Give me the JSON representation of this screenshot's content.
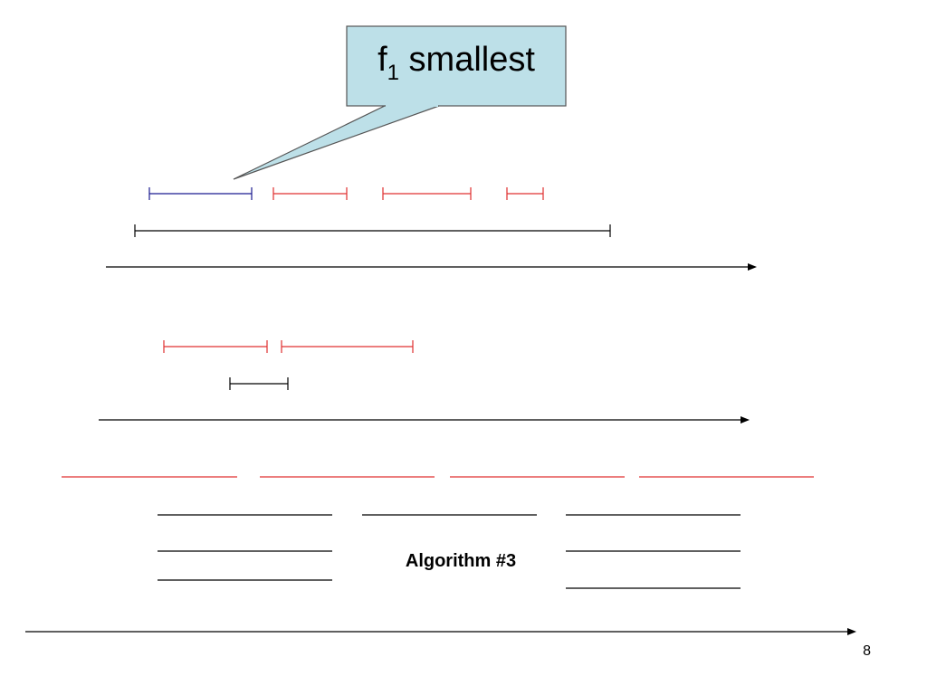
{
  "callout": {
    "text": "f",
    "subscript": "1",
    "suffix": " smallest"
  },
  "label": "Algorithm #3",
  "page_number": "8"
}
